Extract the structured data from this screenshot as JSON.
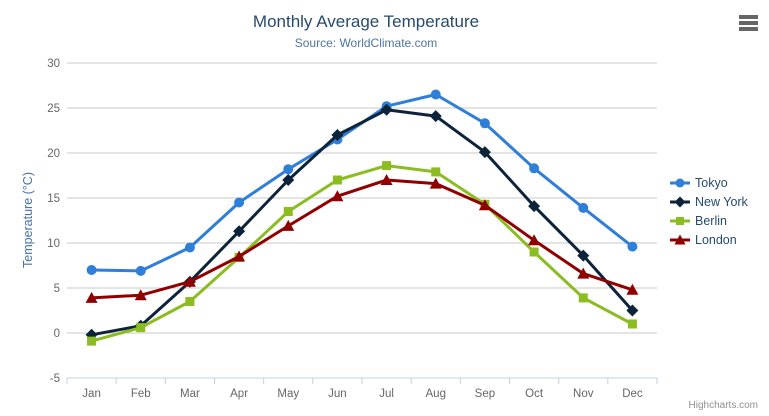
{
  "chart_data": {
    "type": "line",
    "title": "Monthly Average Temperature",
    "subtitle": "Source: WorldClimate.com",
    "categories": [
      "Jan",
      "Feb",
      "Mar",
      "Apr",
      "May",
      "Jun",
      "Jul",
      "Aug",
      "Sep",
      "Oct",
      "Nov",
      "Dec"
    ],
    "yAxis": {
      "title": "Temperature (°C)",
      "min": -5,
      "max": 30,
      "tickInterval": 5
    },
    "xlabel": "",
    "ylabel": "Temperature (°C)",
    "ylim": [
      -5,
      30
    ],
    "grid": true,
    "legend_position": "right",
    "series": [
      {
        "name": "Tokyo",
        "color": "#2f7ed8",
        "marker": "circle",
        "values": [
          7.0,
          6.9,
          9.5,
          14.5,
          18.2,
          21.5,
          25.2,
          26.5,
          23.3,
          18.3,
          13.9,
          9.6
        ]
      },
      {
        "name": "New York",
        "color": "#0d233a",
        "marker": "diamond",
        "values": [
          -0.2,
          0.8,
          5.7,
          11.3,
          17.0,
          22.0,
          24.8,
          24.1,
          20.1,
          14.1,
          8.6,
          2.5
        ]
      },
      {
        "name": "Berlin",
        "color": "#8bbc21",
        "marker": "square",
        "values": [
          -0.9,
          0.6,
          3.5,
          8.4,
          13.5,
          17.0,
          18.6,
          17.9,
          14.3,
          9.0,
          3.9,
          1.0
        ]
      },
      {
        "name": "London",
        "color": "#910000",
        "marker": "triangle",
        "values": [
          3.9,
          4.2,
          5.7,
          8.5,
          11.9,
          15.2,
          17.0,
          16.6,
          14.2,
          10.3,
          6.6,
          4.8
        ]
      }
    ],
    "credits": "Highcharts.com",
    "palette": {
      "background": "#ffffff",
      "title_color": "#274b6d",
      "subtitle_color": "#4d759e",
      "y_axis_title_color": "#4572a7",
      "axis_label_color": "#666666",
      "grid_line_color": "#c9c9c9",
      "x_axis_line_color": "#c0d0e0",
      "legend_text_color": "#274b6d",
      "credits_color": "#909090",
      "export_icon_color": "#666666"
    }
  }
}
